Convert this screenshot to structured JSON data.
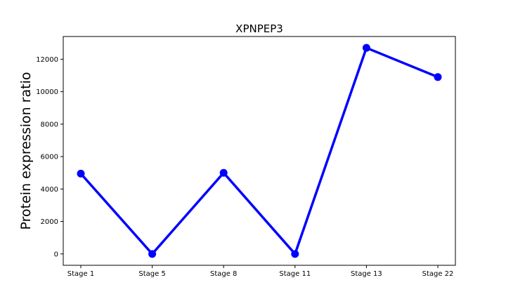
{
  "chart_data": {
    "type": "line",
    "title": "XPNPEP3",
    "xlabel": "",
    "ylabel": "Protein expression ratio",
    "categories": [
      "Stage 1",
      "Stage 5",
      "Stage 8",
      "Stage 11",
      "Stage 13",
      "Stage 22"
    ],
    "series": [
      {
        "values": [
          4950,
          0,
          5000,
          0,
          12700,
          10900
        ],
        "color": "#0000ff"
      }
    ],
    "ylim": [
      -700,
      13400
    ],
    "yticks": [
      0,
      2000,
      4000,
      6000,
      8000,
      10000,
      12000
    ],
    "ytick_labels": [
      "0",
      "2000",
      "4000",
      "6000",
      "8000",
      "10000",
      "12000"
    ],
    "grid": false,
    "legend": "none"
  }
}
